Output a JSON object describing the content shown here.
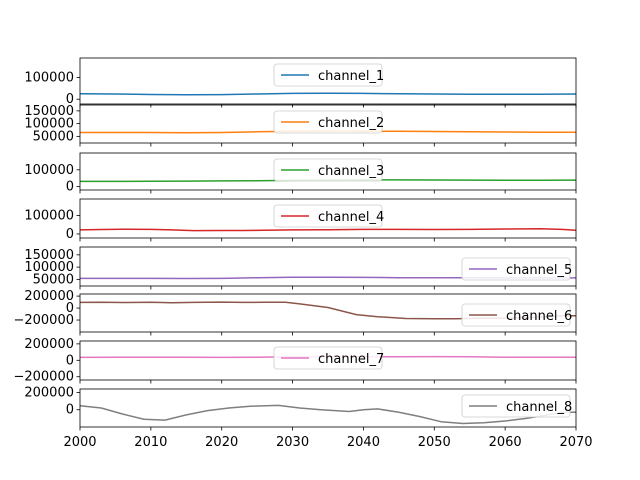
{
  "chart_data": {
    "type": "line",
    "layout": "stacked-subplots",
    "shared_x": true,
    "xlim": [
      2000,
      2070
    ],
    "x_ticks": [
      2000,
      2010,
      2020,
      2030,
      2040,
      2050,
      2060,
      2070
    ],
    "x_tick_labels": [
      "2000",
      "2010",
      "2020",
      "2030",
      "2040",
      "2050",
      "2060",
      "2070"
    ],
    "grid": false,
    "panels": [
      {
        "series": [
          {
            "name": "channel_1",
            "color": "#1f77b4",
            "x": [
              2000,
              2005,
              2010,
              2015,
              2020,
              2025,
              2030,
              2035,
              2040,
              2045,
              2050,
              2055,
              2060,
              2065,
              2070
            ],
            "y": [
              25000,
              24000,
              22000,
              21000,
              21500,
              24000,
              27000,
              28000,
              27000,
              25000,
              24000,
              23000,
              22500,
              23000,
              24000
            ]
          }
        ],
        "ylim": [
          -22000,
          190000
        ],
        "y_ticks": [
          0,
          100000
        ],
        "y_tick_labels": [
          "0",
          "100000"
        ],
        "legend": "top-center"
      },
      {
        "series": [
          {
            "name": "channel_2",
            "color": "#ff7f0e",
            "x": [
              2000,
              2005,
              2010,
              2015,
              2020,
              2025,
              2030,
              2035,
              2040,
              2045,
              2050,
              2055,
              2060,
              2065,
              2070
            ],
            "y": [
              65000,
              65000,
              65000,
              64500,
              65000,
              68000,
              70000,
              71000,
              70500,
              70000,
              69000,
              68000,
              67000,
              66500,
              66000
            ]
          }
        ],
        "ylim": [
          24000,
          173000
        ],
        "y_ticks": [
          50000,
          100000,
          150000
        ],
        "y_tick_labels": [
          "50000",
          "100000",
          "150000"
        ],
        "legend": "top-center"
      },
      {
        "series": [
          {
            "name": "channel_3",
            "color": "#2ca02c",
            "x": [
              2000,
              2005,
              2010,
              2015,
              2020,
              2025,
              2030,
              2035,
              2040,
              2045,
              2050,
              2055,
              2060,
              2065,
              2070
            ],
            "y": [
              31000,
              31000,
              32000,
              33000,
              34000,
              35000,
              37000,
              39000,
              40000,
              40000,
              39500,
              39000,
              38500,
              38500,
              39000
            ]
          }
        ],
        "ylim": [
          -20000,
          200000
        ],
        "y_ticks": [
          0,
          100000
        ],
        "y_tick_labels": [
          "0",
          "100000"
        ],
        "legend": "top-center"
      },
      {
        "series": [
          {
            "name": "channel_4",
            "color": "#d62728",
            "x": [
              2000,
              2003,
              2006,
              2010,
              2013,
              2016,
              2020,
              2023,
              2026,
              2030,
              2035,
              2040,
              2045,
              2050,
              2055,
              2060,
              2065,
              2068,
              2070
            ],
            "y": [
              22000,
              24000,
              26000,
              25000,
              22000,
              18000,
              18500,
              19000,
              20000,
              22000,
              23000,
              24500,
              25000,
              24000,
              24500,
              27000,
              28000,
              25000,
              20000
            ]
          }
        ],
        "ylim": [
          -22000,
          190000
        ],
        "y_ticks": [
          0,
          100000
        ],
        "y_tick_labels": [
          "0",
          "100000"
        ],
        "legend": "top-center"
      },
      {
        "series": [
          {
            "name": "channel_5",
            "color": "#9467bd",
            "x": [
              2000,
              2005,
              2010,
              2015,
              2020,
              2025,
              2030,
              2035,
              2040,
              2045,
              2050,
              2055,
              2060,
              2065,
              2070
            ],
            "y": [
              54000,
              54000,
              54000,
              53500,
              54000,
              57000,
              59000,
              59000,
              58000,
              57000,
              56500,
              56500,
              56000,
              56000,
              56000
            ]
          }
        ],
        "ylim": [
          23000,
          182000
        ],
        "y_ticks": [
          50000,
          100000,
          150000
        ],
        "y_tick_labels": [
          "50000",
          "100000",
          "150000"
        ],
        "legend": "lower-right"
      },
      {
        "series": [
          {
            "name": "channel_6",
            "color": "#8c564b",
            "x": [
              2000,
              2003,
              2006,
              2010,
              2013,
              2016,
              2020,
              2023,
              2026,
              2029,
              2031,
              2035,
              2039,
              2042,
              2046,
              2050,
              2053,
              2056,
              2060,
              2063,
              2066,
              2068,
              2070
            ],
            "y": [
              95000,
              98000,
              93000,
              96000,
              90000,
              95000,
              100000,
              95000,
              97000,
              98000,
              70000,
              10000,
              -110000,
              -145000,
              -175000,
              -180000,
              -178000,
              -170000,
              -168000,
              -160000,
              -145000,
              -130000,
              -130000
            ]
          }
        ],
        "ylim": [
          -400000,
          235000
        ],
        "y_ticks": [
          -200000,
          0,
          200000
        ],
        "y_tick_labels": [
          "−200000",
          "0",
          "200000"
        ],
        "legend": "lower-right"
      },
      {
        "series": [
          {
            "name": "channel_7",
            "color": "#e377c2",
            "x": [
              2000,
              2005,
              2010,
              2015,
              2020,
              2025,
              2030,
              2035,
              2040,
              2045,
              2050,
              2055,
              2060,
              2065,
              2070
            ],
            "y": [
              35000,
              37000,
              38000,
              37000,
              35000,
              38000,
              42000,
              42000,
              42000,
              44000,
              45000,
              42000,
              38000,
              36000,
              37000
            ]
          }
        ],
        "ylim": [
          -240000,
          235000
        ],
        "y_ticks": [
          -200000,
          0,
          200000
        ],
        "y_tick_labels": [
          "−200000",
          "0",
          "200000"
        ],
        "legend": "top-center"
      },
      {
        "series": [
          {
            "name": "channel_8",
            "color": "#7f7f7f",
            "x": [
              2000,
              2003,
              2006,
              2009,
              2012,
              2015,
              2018,
              2021,
              2024,
              2028,
              2031,
              2034,
              2038,
              2040,
              2042,
              2045,
              2048,
              2051,
              2054,
              2057,
              2060,
              2063,
              2066,
              2068,
              2070
            ],
            "y": [
              45000,
              20000,
              -50000,
              -110000,
              -120000,
              -60000,
              -10000,
              20000,
              40000,
              50000,
              20000,
              0,
              -20000,
              0,
              10000,
              -30000,
              -80000,
              -140000,
              -160000,
              -150000,
              -130000,
              -100000,
              -60000,
              -30000,
              -30000
            ]
          }
        ],
        "ylim": [
          -200000,
          240000
        ],
        "y_ticks": [
          0,
          200000
        ],
        "y_tick_labels": [
          "0",
          "200000"
        ],
        "legend": "top-right"
      }
    ]
  }
}
